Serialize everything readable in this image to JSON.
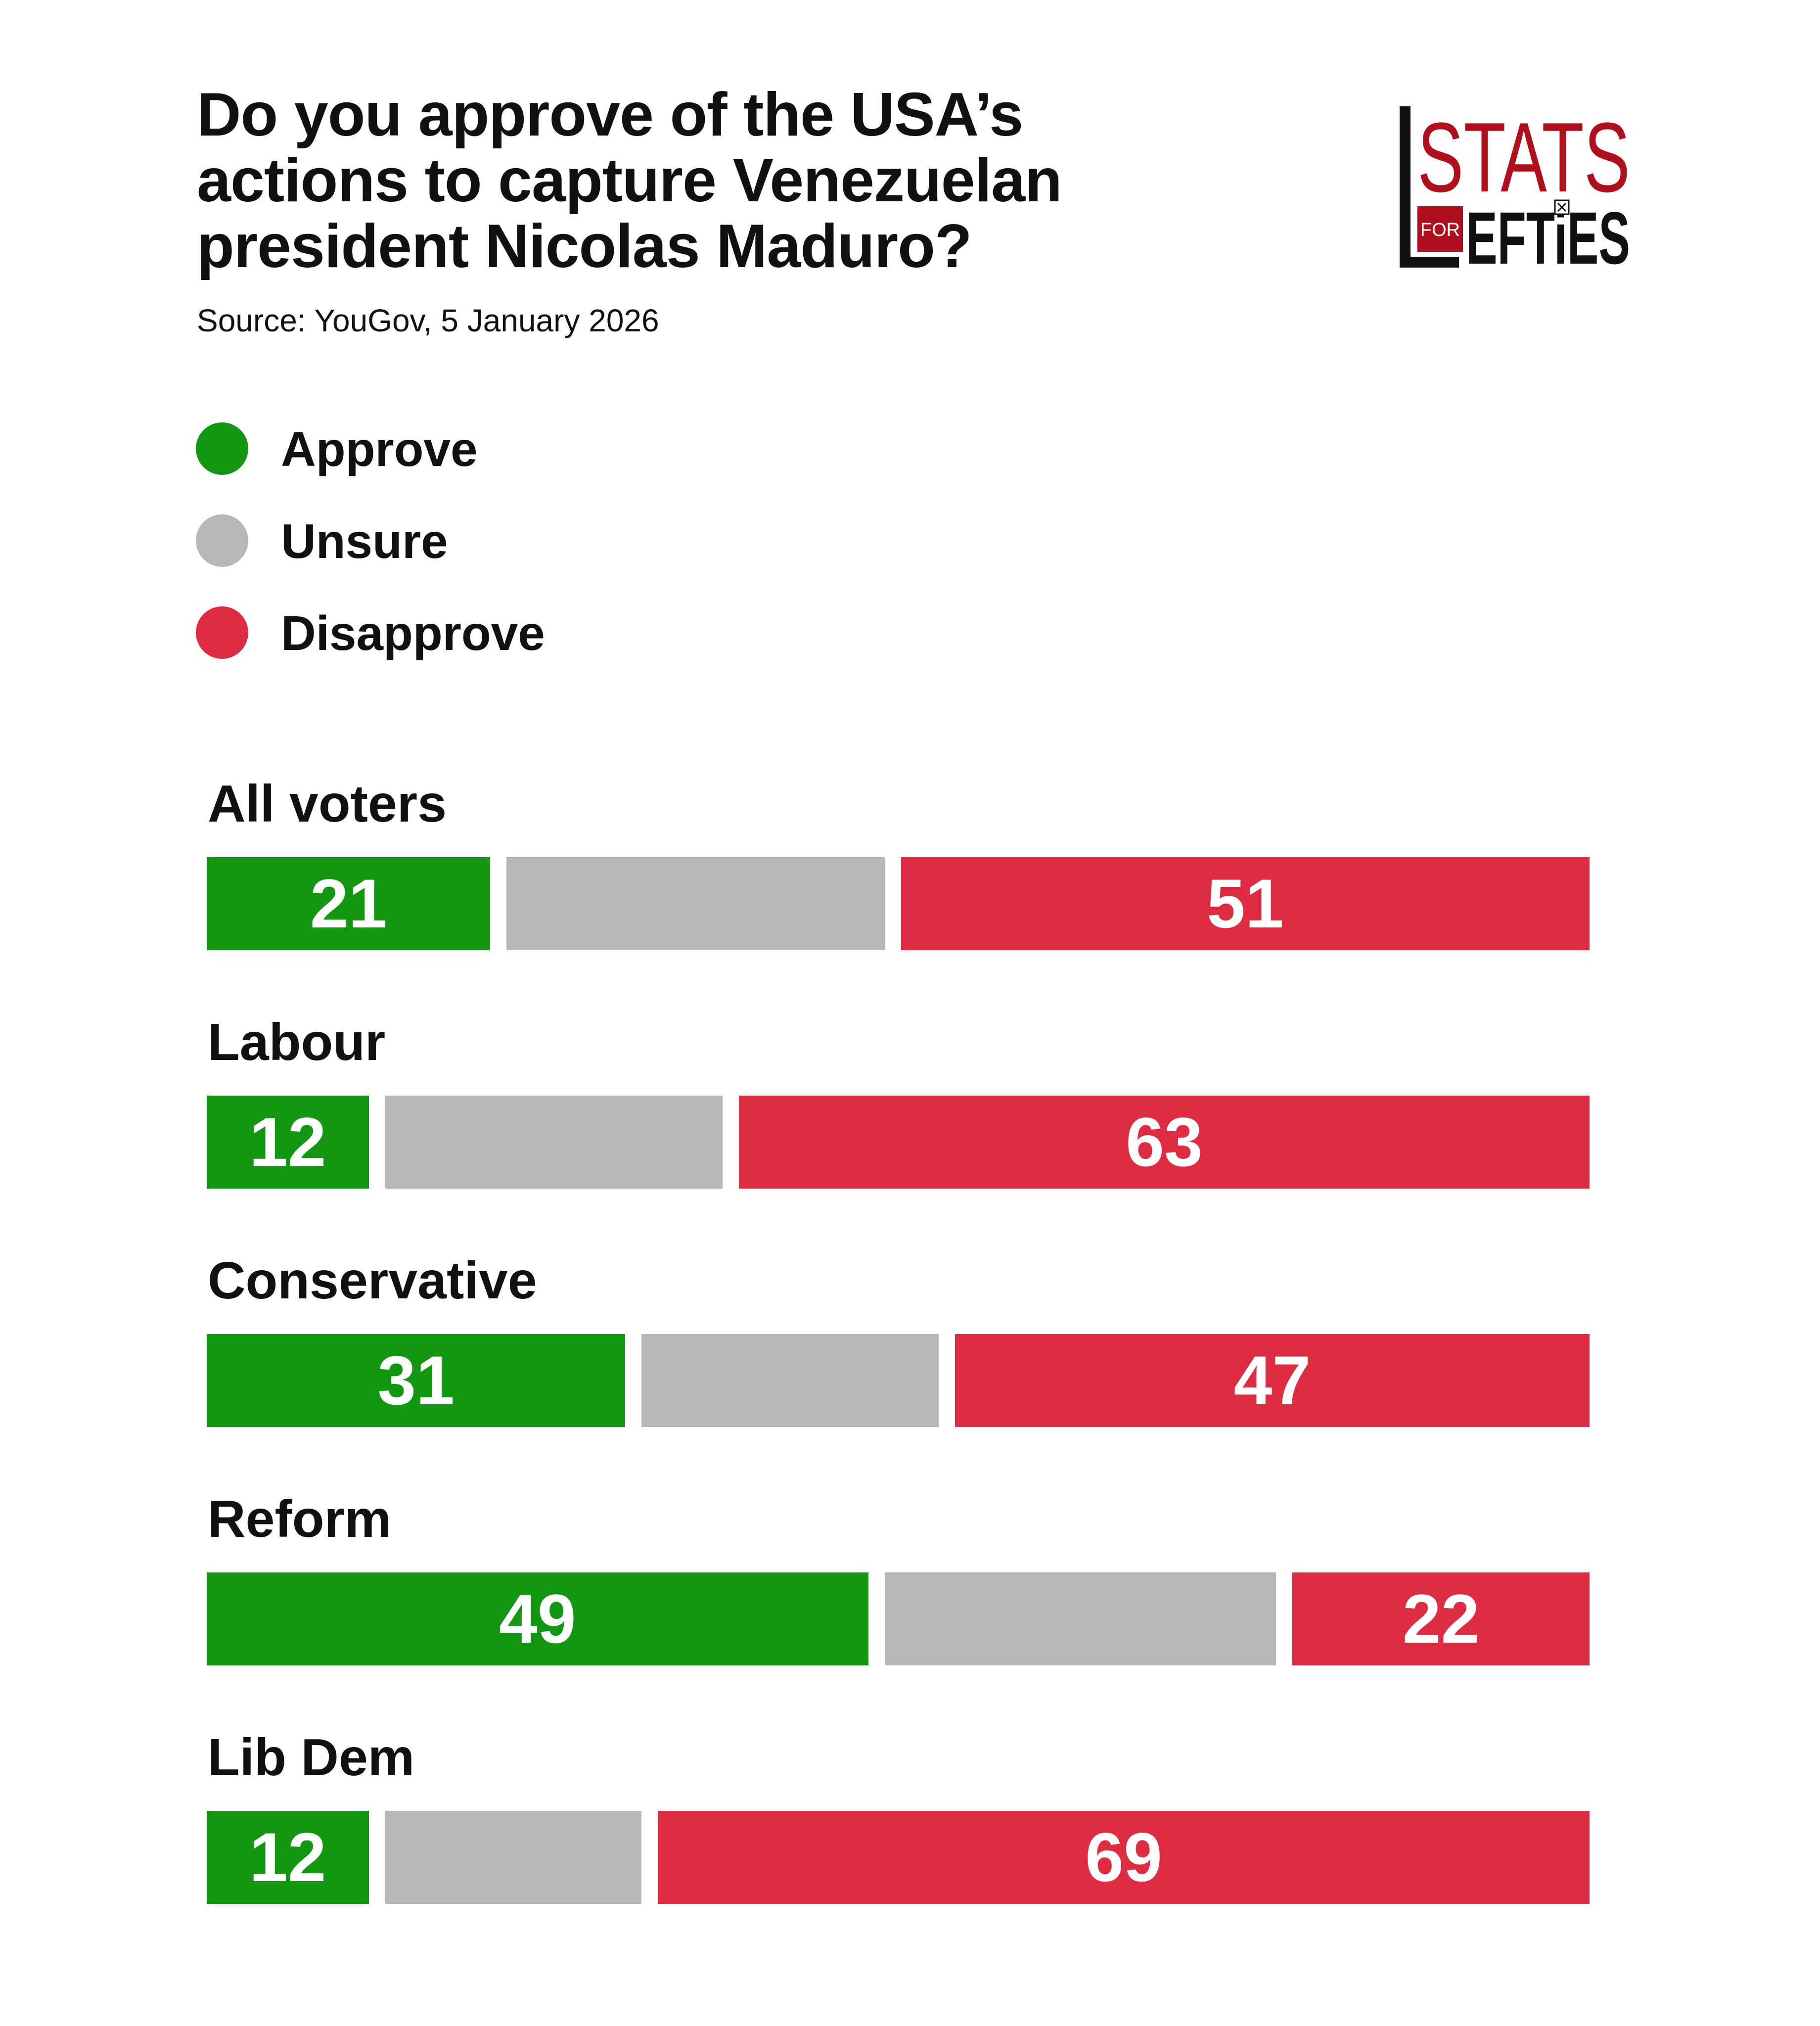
{
  "header": {
    "title": "Do you approve of the USA’s\nactions to capture Venezuelan\npresident Nicolas Maduro?",
    "source": "Source: YouGov, 5 January 2026"
  },
  "logo": {
    "text_top": "STATS",
    "text_for": "FOR",
    "text_bottom": "EFTiES",
    "accent_color": "#b0101e"
  },
  "legend": [
    {
      "label": "Approve",
      "color": "#139612"
    },
    {
      "label": "Unsure",
      "color": "#b8b7b5"
    },
    {
      "label": "Disapprove",
      "color": "#de2d43"
    }
  ],
  "chart_data": {
    "type": "bar",
    "orientation": "horizontal",
    "stacked": true,
    "title": "Do you approve of the USA’s actions to capture Venezuelan president Nicolas Maduro?",
    "subtitle": "Source: YouGov, 5 January 2026",
    "categories": [
      "All voters",
      "Labour",
      "Conservative",
      "Reform",
      "Lib Dem"
    ],
    "series": [
      {
        "name": "Approve",
        "color": "#139612",
        "values": [
          21,
          12,
          31,
          49,
          12
        ],
        "show_labels": true
      },
      {
        "name": "Unsure",
        "color": "#b8b7b5",
        "values": [
          28,
          25,
          22,
          29,
          19
        ],
        "show_labels": false
      },
      {
        "name": "Disapprove",
        "color": "#de2d43",
        "values": [
          51,
          63,
          47,
          22,
          69
        ],
        "show_labels": true
      }
    ],
    "xlim": [
      0,
      100
    ],
    "grid": false,
    "legend_position": "top-left"
  }
}
